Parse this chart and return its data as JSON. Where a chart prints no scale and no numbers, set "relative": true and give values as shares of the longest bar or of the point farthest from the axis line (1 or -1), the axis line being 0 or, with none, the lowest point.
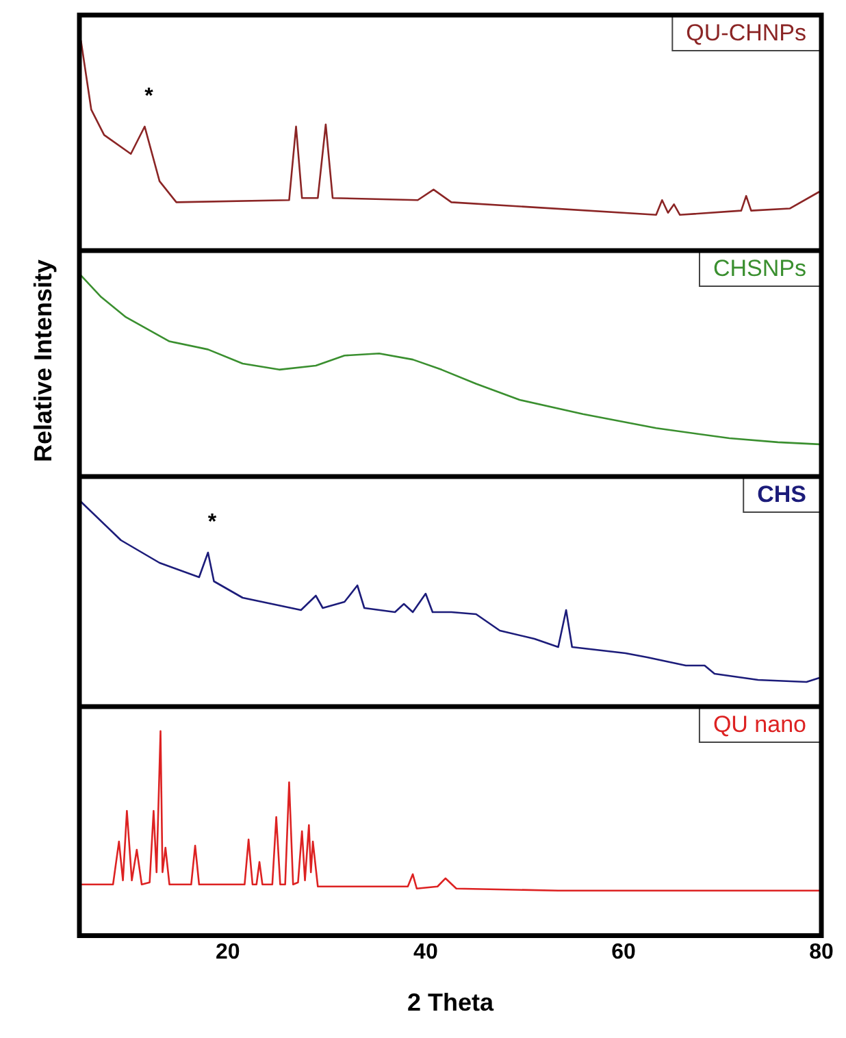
{
  "chart_data": [
    {
      "type": "line",
      "relative": true,
      "xlim": [
        5,
        80
      ],
      "xticks": [
        20,
        40,
        60,
        80
      ],
      "tick_labels": false,
      "grid": false,
      "marker": "none",
      "line_style": "solid",
      "ylabel": "Relative Intensity",
      "annotations": [
        {
          "text": "*",
          "x": 11.6,
          "y": 0.59
        }
      ],
      "series": [
        {
          "name": "QU-CHNPs",
          "color": "#8b2525",
          "x": [
            5.15,
            6.2,
            7.5,
            10.2,
            11.6,
            13.1,
            14.8,
            26.2,
            26.9,
            27.5,
            29.1,
            29.9,
            30.6,
            39.2,
            40.8,
            42.6,
            63.3,
            63.9,
            64.5,
            65.1,
            65.7,
            71.9,
            72.4,
            72.9,
            76.8,
            79.8
          ],
          "values": [
            1.0,
            0.67,
            0.55,
            0.46,
            0.59,
            0.33,
            0.23,
            0.24,
            0.59,
            0.25,
            0.25,
            0.6,
            0.25,
            0.24,
            0.29,
            0.23,
            0.17,
            0.24,
            0.18,
            0.22,
            0.17,
            0.19,
            0.26,
            0.19,
            0.2,
            0.28
          ]
        }
      ]
    },
    {
      "type": "line",
      "relative": true,
      "xlim": [
        5,
        80
      ],
      "xticks": [
        20,
        40,
        60,
        80
      ],
      "tick_labels": false,
      "grid": false,
      "marker": "none",
      "line_style": "solid",
      "series": [
        {
          "name": "CHSNPs",
          "color": "#3a8f2f",
          "x": [
            5.1,
            7.2,
            9.7,
            14.1,
            18.0,
            21.5,
            25.2,
            28.9,
            31.8,
            35.3,
            38.7,
            41.6,
            45.1,
            49.5,
            55.9,
            63.3,
            70.7,
            75.6,
            79.8
          ],
          "values": [
            1.0,
            0.89,
            0.79,
            0.67,
            0.63,
            0.56,
            0.53,
            0.55,
            0.6,
            0.61,
            0.58,
            0.53,
            0.46,
            0.38,
            0.31,
            0.24,
            0.19,
            0.17,
            0.16
          ]
        }
      ]
    },
    {
      "type": "line",
      "relative": true,
      "xlim": [
        5,
        80
      ],
      "xticks": [
        20,
        40,
        60,
        80
      ],
      "tick_labels": false,
      "grid": false,
      "marker": "none",
      "line_style": "solid",
      "annotations": [
        {
          "text": "*",
          "x": 18.0,
          "y": 0.75
        }
      ],
      "series": [
        {
          "name": "CHS",
          "color": "#1c1c7a",
          "x": [
            5.1,
            9.2,
            13.1,
            17.1,
            18.0,
            18.6,
            21.5,
            27.4,
            28.9,
            29.6,
            31.8,
            33.1,
            33.8,
            36.9,
            37.8,
            38.7,
            40.0,
            40.7,
            42.6,
            45.1,
            47.5,
            51.0,
            53.4,
            54.2,
            54.8,
            60.2,
            62.4,
            66.3,
            68.2,
            69.2,
            73.6,
            78.5,
            79.8
          ],
          "values": [
            1.0,
            0.81,
            0.7,
            0.63,
            0.75,
            0.61,
            0.53,
            0.47,
            0.54,
            0.48,
            0.51,
            0.59,
            0.48,
            0.46,
            0.5,
            0.46,
            0.55,
            0.46,
            0.46,
            0.45,
            0.37,
            0.33,
            0.29,
            0.47,
            0.29,
            0.26,
            0.24,
            0.2,
            0.2,
            0.16,
            0.13,
            0.12,
            0.14
          ]
        }
      ]
    },
    {
      "type": "line",
      "relative": true,
      "xlim": [
        5,
        80
      ],
      "xticks": [
        20,
        40,
        60,
        80
      ],
      "xlabel": "2 Theta",
      "tick_labels": "x",
      "grid": false,
      "marker": "none",
      "line_style": "solid",
      "series": [
        {
          "name": "QU nano",
          "color": "#dd2222",
          "x": [
            5.1,
            8.4,
            9.0,
            9.4,
            9.8,
            10.3,
            10.8,
            11.3,
            12.1,
            12.5,
            12.8,
            13.2,
            13.4,
            13.7,
            14.1,
            16.3,
            16.7,
            17.1,
            21.7,
            22.1,
            22.5,
            22.9,
            23.2,
            23.5,
            24.5,
            24.9,
            25.3,
            25.8,
            26.2,
            26.6,
            27.1,
            27.5,
            27.8,
            28.2,
            28.4,
            28.6,
            29.1,
            38.2,
            38.7,
            39.1,
            41.2,
            42.0,
            43.1,
            53.4,
            79.8
          ],
          "values": [
            0.25,
            0.25,
            0.46,
            0.27,
            0.61,
            0.27,
            0.42,
            0.25,
            0.26,
            0.61,
            0.31,
            1.0,
            0.31,
            0.43,
            0.25,
            0.25,
            0.44,
            0.25,
            0.25,
            0.47,
            0.25,
            0.25,
            0.36,
            0.25,
            0.25,
            0.58,
            0.25,
            0.25,
            0.75,
            0.25,
            0.26,
            0.51,
            0.27,
            0.54,
            0.31,
            0.46,
            0.24,
            0.24,
            0.3,
            0.23,
            0.24,
            0.28,
            0.23,
            0.22,
            0.22
          ]
        }
      ]
    }
  ]
}
